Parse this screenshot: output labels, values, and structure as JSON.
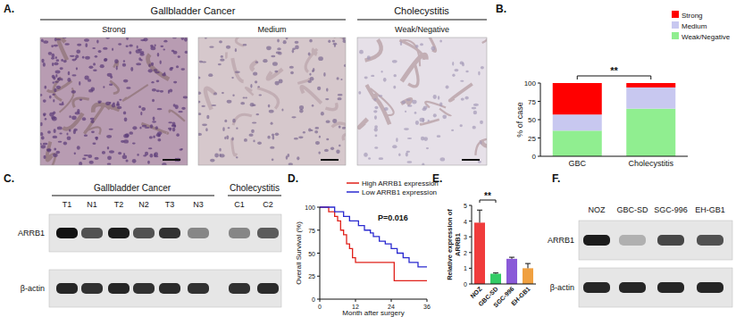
{
  "panel_labels": [
    "A.",
    "B.",
    "C.",
    "D.",
    "E.",
    "F."
  ],
  "ihc": {
    "group_headers": [
      "Gallbladder Cancer",
      "Cholecystitis"
    ],
    "images": [
      "Strong",
      "Medium",
      "Weak/Negative"
    ]
  },
  "chart_data": [
    {
      "type": "bar",
      "stacked": true,
      "categories": [
        "GBC",
        "Cholecystitis"
      ],
      "series": [
        {
          "name": "Weak/Negative",
          "color": "#90ee90",
          "values": [
            35,
            65
          ]
        },
        {
          "name": "Medium",
          "color": "#c8c8f0",
          "values": [
            22,
            29
          ]
        },
        {
          "name": "Strong",
          "color": "#ff0000",
          "values": [
            43,
            6
          ]
        }
      ],
      "ylim": [
        0,
        100
      ],
      "yticks": [
        0,
        25,
        50,
        75,
        100
      ],
      "y_label": "% of case",
      "legend": "top-right",
      "annotations": [
        "**"
      ]
    },
    {
      "type": "line",
      "line_style": "step",
      "series": [
        {
          "name": "High ARRB1 expression",
          "color": "#e0201a",
          "x": [
            0,
            3,
            5,
            6,
            7,
            8,
            9,
            10,
            11,
            12,
            23,
            25,
            36
          ],
          "values": [
            100,
            95,
            90,
            85,
            75,
            70,
            60,
            55,
            45,
            40,
            40,
            20,
            20
          ]
        },
        {
          "name": "Low ARRB1 expression",
          "color": "#2a2ad0",
          "x": [
            0,
            5,
            8,
            10,
            13,
            15,
            17,
            18,
            20,
            22,
            24,
            26,
            28,
            30,
            33,
            36
          ],
          "values": [
            100,
            95,
            90,
            85,
            80,
            75,
            72,
            68,
            63,
            60,
            55,
            50,
            45,
            40,
            35,
            35
          ]
        }
      ],
      "xlim": [
        0,
        36
      ],
      "xticks": [
        0,
        12,
        24,
        36
      ],
      "ylim": [
        0,
        100
      ],
      "yticks": [
        0,
        25,
        50,
        75,
        100
      ],
      "x_label": "Month after surgery",
      "y_label": "Overall Survival (%)",
      "legend": "top",
      "annotations": [
        "P=0.016"
      ]
    },
    {
      "type": "bar",
      "categories": [
        "NOZ",
        "GBC-SD",
        "SGC-996",
        "EH-GB1"
      ],
      "values": [
        3.9,
        0.65,
        1.6,
        1.0
      ],
      "errors": [
        0.8,
        0.05,
        0.1,
        0.3
      ],
      "colors": [
        "#f03c3c",
        "#33cc66",
        "#8a5ad8",
        "#f0a040"
      ],
      "ylim": [
        0,
        5
      ],
      "yticks": [
        0,
        1,
        2,
        3,
        4,
        5
      ],
      "y_label": "Relative expression of ARRB1",
      "annotations": [
        "**"
      ]
    }
  ],
  "blot_c": {
    "groups": [
      "Gallbladder Cancer",
      "Cholecystitis"
    ],
    "lanes": [
      "T1",
      "N1",
      "T2",
      "N2",
      "T3",
      "N3",
      "C1",
      "C2"
    ],
    "rows": [
      {
        "label": "ARRB1",
        "intensity": [
          1.0,
          0.7,
          0.95,
          0.7,
          0.85,
          0.45,
          0.45,
          0.65
        ]
      },
      {
        "label": "β-actin",
        "intensity": [
          0.9,
          0.85,
          0.9,
          0.85,
          0.88,
          0.85,
          0.85,
          0.88
        ]
      }
    ]
  },
  "blot_f": {
    "lanes": [
      "NOZ",
      "GBC-SD",
      "SGC-996",
      "EH-GB1"
    ],
    "rows": [
      {
        "label": "ARRB1",
        "intensity": [
          0.95,
          0.25,
          0.75,
          0.7
        ]
      },
      {
        "label": "β-actin",
        "intensity": [
          0.9,
          0.9,
          0.9,
          0.9
        ]
      }
    ]
  }
}
